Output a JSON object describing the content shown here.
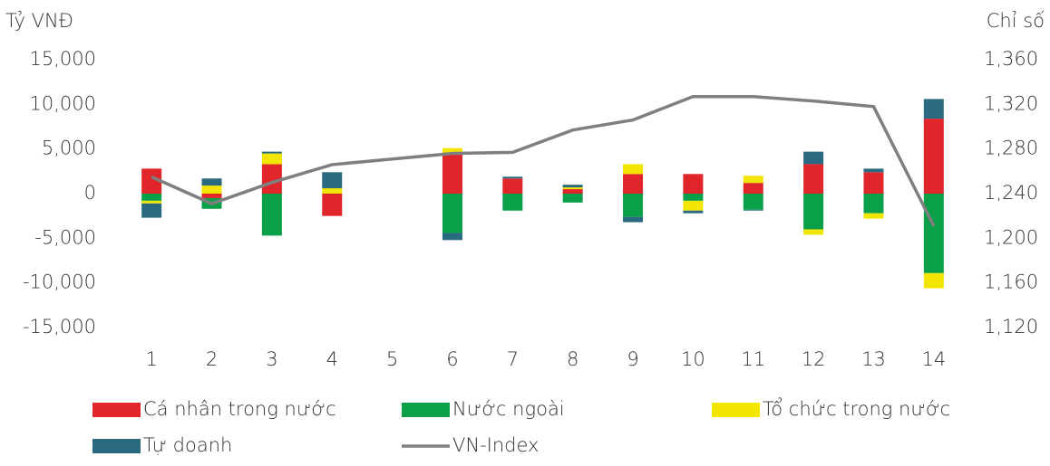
{
  "chart_data": {
    "type": "bar",
    "stacked": true,
    "ylabel": "Tỷ VNĐ",
    "y2label": "Chỉ số",
    "categories": [
      "1",
      "2",
      "3",
      "4",
      "5",
      "6",
      "7",
      "8",
      "9",
      "10",
      "11",
      "12",
      "13",
      "14"
    ],
    "series": [
      {
        "name": "Cá nhân trong nước",
        "color": "#e0252b",
        "values": [
          2800,
          -500,
          3300,
          -2500,
          0,
          4600,
          1700,
          500,
          2200,
          2200,
          1200,
          3300,
          2400,
          8400
        ]
      },
      {
        "name": "Nước ngoài",
        "color": "#0aa04a",
        "values": [
          -800,
          -1200,
          -4700,
          0,
          0,
          -4400,
          -1900,
          -1000,
          -2600,
          -800,
          -1800,
          -4000,
          -2200,
          -8900
        ]
      },
      {
        "name": "Tổ chức trong nước",
        "color": "#f2e500",
        "values": [
          -300,
          900,
          1200,
          600,
          0,
          500,
          0,
          200,
          1100,
          -1100,
          800,
          -600,
          -600,
          -1700
        ]
      },
      {
        "name": "Tự doanh",
        "color": "#2a6a80",
        "values": [
          -1600,
          800,
          200,
          1800,
          0,
          -800,
          200,
          300,
          -600,
          -300,
          -100,
          1400,
          400,
          2200
        ]
      },
      {
        "name": "VN-Index",
        "color": "#7f7f7f",
        "type": "line",
        "axis": "y2",
        "values": [
          1255,
          1231,
          1250,
          1266,
          1271,
          1276,
          1277,
          1297,
          1306,
          1327,
          1327,
          1323,
          1318,
          1211
        ]
      }
    ],
    "ylim": [
      -15000,
      15000
    ],
    "yticks": [
      {
        "value": 15000,
        "label": "15,000"
      },
      {
        "value": 10000,
        "label": "10,000"
      },
      {
        "value": 5000,
        "label": "5,000"
      },
      0,
      {
        "value": -5000,
        "label": "-5,000"
      },
      {
        "value": -10000,
        "label": "-10,000"
      },
      {
        "value": -15000,
        "label": "-15,000"
      }
    ],
    "y2lim": [
      1120,
      1360
    ],
    "y2ticks": [
      {
        "value": 1360,
        "label": "1,360"
      },
      {
        "value": 1320,
        "label": "1,320"
      },
      {
        "value": 1280,
        "label": "1,280"
      },
      {
        "value": 1240,
        "label": "1,240"
      },
      {
        "value": 1200,
        "label": "1,200"
      },
      {
        "value": 1160,
        "label": "1,160"
      },
      {
        "value": 1120,
        "label": "1,120"
      }
    ],
    "legend": "bottom",
    "grid": false
  }
}
